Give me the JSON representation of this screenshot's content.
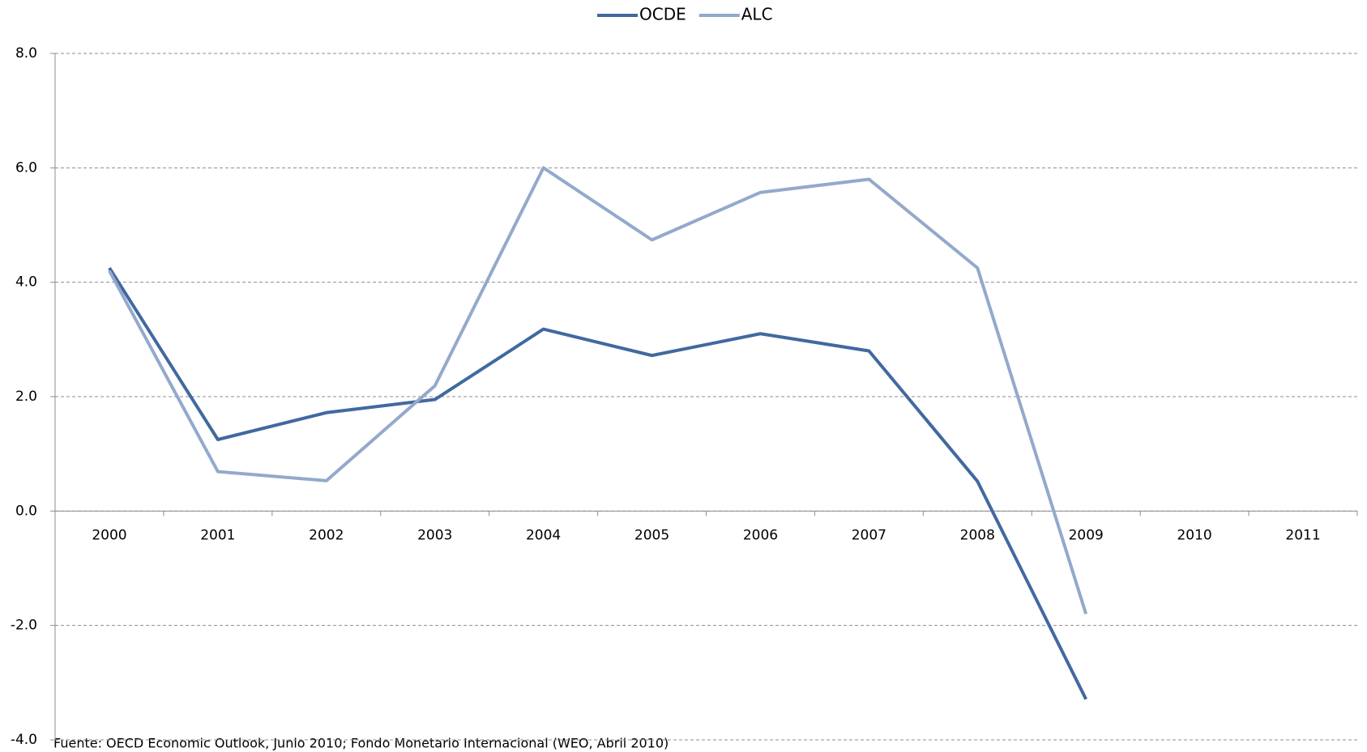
{
  "chart_data": {
    "type": "line",
    "categories": [
      "2000",
      "2001",
      "2002",
      "2003",
      "2004",
      "2005",
      "2006",
      "2007",
      "2008",
      "2009",
      "2010",
      "2011"
    ],
    "series": [
      {
        "name": "OCDE",
        "color": "#41699f",
        "values": [
          4.25,
          1.25,
          1.72,
          1.95,
          3.18,
          2.72,
          3.1,
          2.8,
          0.52,
          -3.29,
          null,
          null
        ]
      },
      {
        "name": "ALC",
        "color": "#93a9cc",
        "values": [
          4.2,
          0.69,
          0.53,
          2.19,
          6.0,
          4.74,
          5.57,
          5.8,
          4.25,
          -1.8,
          null,
          null
        ]
      }
    ],
    "ylim": [
      -4,
      8
    ],
    "yticks": [
      {
        "value": -4,
        "label": "-4.0"
      },
      {
        "value": -2,
        "label": "-2.0"
      },
      {
        "value": 0,
        "label": "0.0"
      },
      {
        "value": 2,
        "label": "2.0"
      },
      {
        "value": 4,
        "label": "4.0"
      },
      {
        "value": 6,
        "label": "6.0"
      },
      {
        "value": 8,
        "label": "8.0"
      }
    ],
    "grid": true,
    "legend": "top",
    "source": "Fuente: OECD Economic Outlook, Junio 2010; Fondo Monetario Internacional (WEO, Abril 2010)"
  }
}
